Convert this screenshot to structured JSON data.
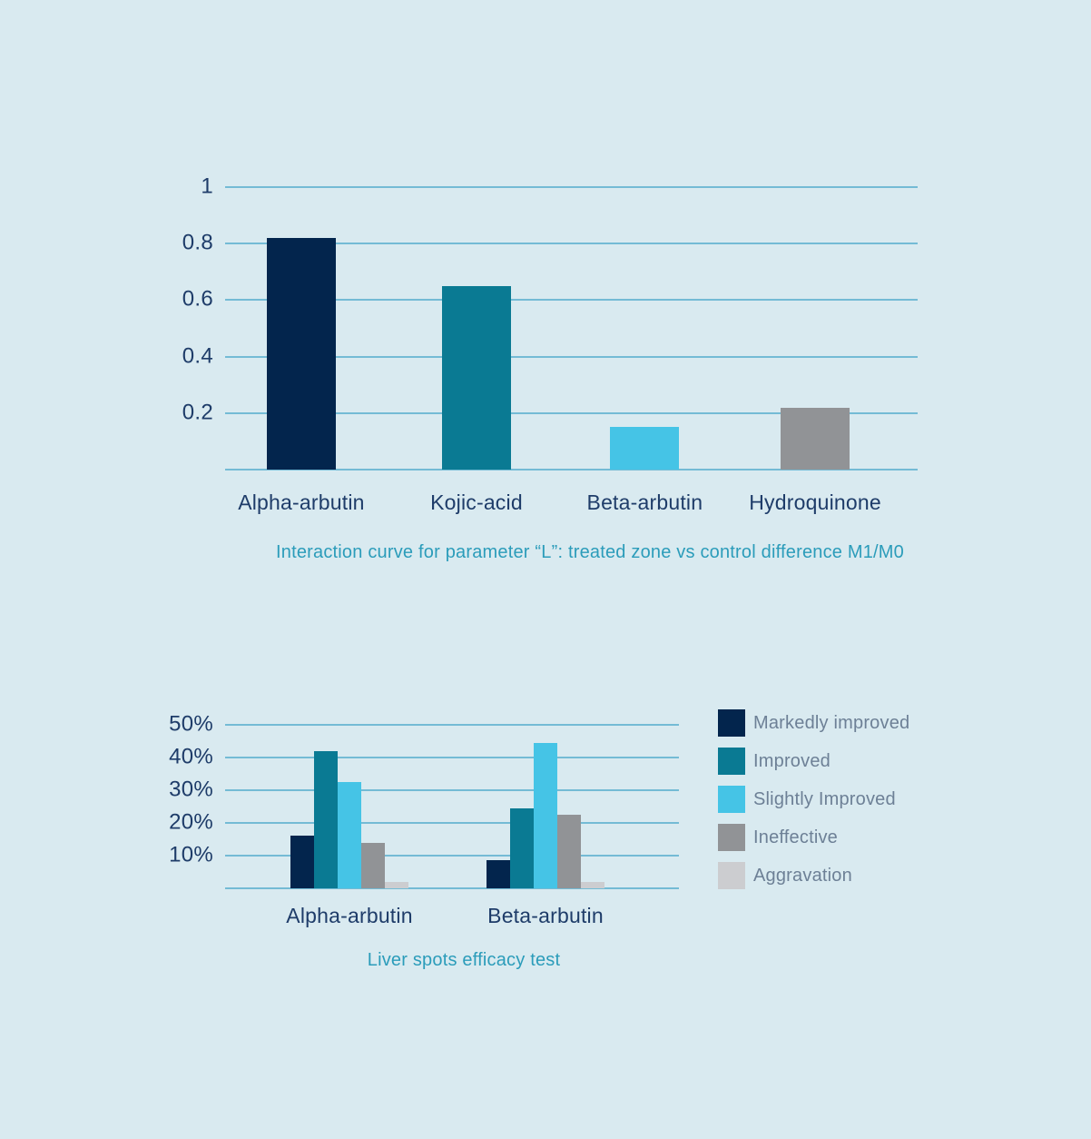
{
  "chart_data": [
    {
      "type": "bar",
      "caption": "Interaction curve for parameter “L”: treated zone vs control difference M1/M0",
      "categories": [
        "Alpha-arbutin",
        "Kojic-acid",
        "Beta-arbutin",
        "Hydroquinone"
      ],
      "values": [
        0.82,
        0.65,
        0.15,
        0.22
      ],
      "bar_colors": [
        "#03254d",
        "#0a7a93",
        "#45c4e6",
        "#919396"
      ],
      "ylim": [
        0,
        1
      ],
      "yticks": [
        {
          "label": "1",
          "value": 1
        },
        {
          "label": "0.8",
          "value": 0.8
        },
        {
          "label": "0.6",
          "value": 0.6
        },
        {
          "label": "0.4",
          "value": 0.4
        },
        {
          "label": "0.2",
          "value": 0.2
        },
        {
          "label": "",
          "value": 0
        }
      ],
      "grid": true,
      "legend_position": "none"
    },
    {
      "type": "bar",
      "caption": "Liver spots efficacy test",
      "categories": [
        "Alpha-arbutin",
        "Beta-arbutin"
      ],
      "series": [
        {
          "name": "Markedly improved",
          "color": "#03254d",
          "values": [
            16,
            8.5
          ]
        },
        {
          "name": "Improved",
          "color": "#0a7a93",
          "values": [
            42,
            24.5
          ]
        },
        {
          "name": "Slightly Improved",
          "color": "#45c4e6",
          "values": [
            32.5,
            44.5
          ]
        },
        {
          "name": "Ineffective",
          "color": "#919396",
          "values": [
            14,
            22.5
          ]
        },
        {
          "name": "Aggravation",
          "color": "#cccdd0",
          "values": [
            2,
            2
          ]
        }
      ],
      "ylim": [
        0,
        50
      ],
      "yticks": [
        {
          "label": "50%",
          "value": 50
        },
        {
          "label": "40%",
          "value": 40
        },
        {
          "label": "30%",
          "value": 30
        },
        {
          "label": "20%",
          "value": 20
        },
        {
          "label": "10%",
          "value": 10
        },
        {
          "label": "",
          "value": 0
        }
      ],
      "grid": true,
      "legend_position": "right"
    }
  ],
  "colors": {
    "background": "#d9eaf0",
    "gridline": "#74bbd5",
    "axis_text": "#1e3c69",
    "caption_text": "#2b9cba",
    "legend_text": "#6d8096"
  }
}
